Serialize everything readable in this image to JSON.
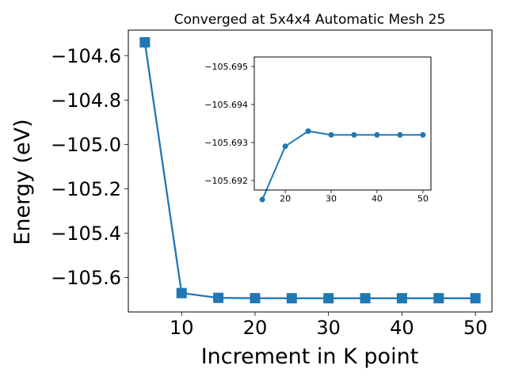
{
  "colors": {
    "series": "#1f77b4",
    "axis": "#000000",
    "background": "#ffffff"
  },
  "chart_data": [
    {
      "type": "line",
      "title": "Converged at 5x4x4 Automatic Mesh 25",
      "xlabel": "Increment in K point",
      "ylabel": "Energy (eV)",
      "xlim": [
        2.75,
        52.25
      ],
      "ylim": [
        -105.755,
        -104.485
      ],
      "xticks": [
        10,
        20,
        30,
        40,
        50
      ],
      "xtick_labels": [
        "10",
        "20",
        "30",
        "40",
        "50"
      ],
      "yticks": [
        -105.6,
        -105.4,
        -105.2,
        -105.0,
        -104.8,
        -104.6
      ],
      "ytick_labels": [
        "−105.6",
        "−105.4",
        "−105.2",
        "−105.0",
        "−104.8",
        "−104.6"
      ],
      "marker": "square",
      "grid": false,
      "series": [
        {
          "x": [
            5,
            10,
            15,
            20,
            25,
            30,
            35,
            40,
            45,
            50
          ],
          "y": [
            -104.54,
            -105.67,
            -105.6915,
            -105.6929,
            -105.6933,
            -105.6932,
            -105.6932,
            -105.6932,
            -105.6932,
            -105.6932
          ]
        }
      ]
    },
    {
      "type": "line",
      "inset": true,
      "xlim": [
        13.25,
        51.75
      ],
      "ylim": [
        -105.69175,
        -105.69525
      ],
      "xticks": [
        20,
        30,
        40,
        50
      ],
      "xtick_labels": [
        "20",
        "30",
        "40",
        "50"
      ],
      "yticks": [
        -105.692,
        -105.693,
        -105.694,
        -105.695
      ],
      "ytick_labels": [
        "−105.692",
        "−105.693",
        "−105.694",
        "−105.695"
      ],
      "marker": "circle",
      "grid": false,
      "series": [
        {
          "x": [
            15,
            20,
            25,
            30,
            35,
            40,
            45,
            50
          ],
          "y": [
            -105.6915,
            -105.6929,
            -105.6933,
            -105.6932,
            -105.6932,
            -105.6932,
            -105.6932,
            -105.6932
          ]
        }
      ]
    }
  ]
}
